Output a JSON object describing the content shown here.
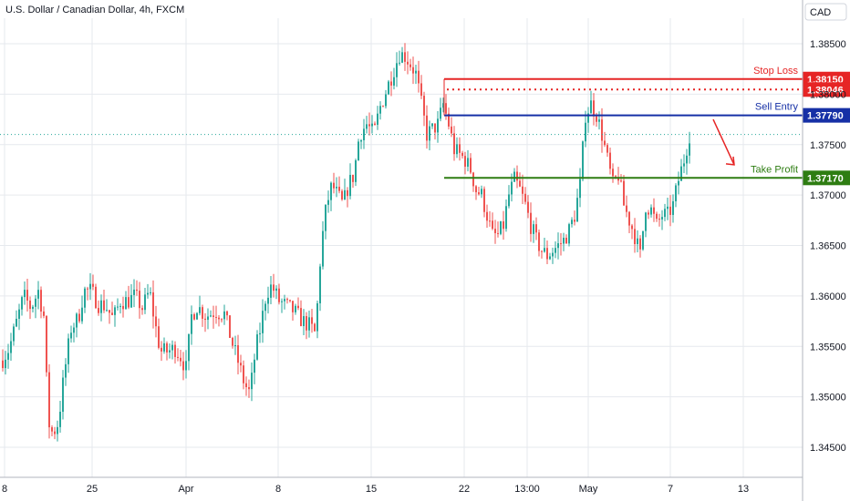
{
  "header": {
    "symbol_title": "U.S. Dollar / Canadian Dollar, 4h, FXCM",
    "currency": "CAD"
  },
  "colors": {
    "up": "#26a69a",
    "down": "#ef5350",
    "stop": "#e62525",
    "entry": "#1630a6",
    "profit": "#2e7d12",
    "grid": "#e6e9ee",
    "axis": "#b2b5be",
    "current": "#26a69a"
  },
  "chart_data": {
    "type": "candlestick",
    "ylim": [
      1.3425,
      1.387
    ],
    "yticks": [
      "1.38500",
      "1.38000",
      "1.37500",
      "1.37000",
      "1.36500",
      "1.36000",
      "1.35500",
      "1.35000",
      "1.34500"
    ],
    "xticks": [
      "8",
      "25",
      "Apr",
      "8",
      "15",
      "22",
      "13:00",
      "May",
      "7",
      "13"
    ],
    "current_price": 1.376,
    "levels": [
      {
        "name": "Stop Loss",
        "value": "1.38150",
        "price": 1.3815,
        "style": "solid",
        "color": "#e62525"
      },
      {
        "name": "",
        "value": "1.38046",
        "price": 1.38046,
        "style": "dotted",
        "color": "#e62525"
      },
      {
        "name": "Sell Entry",
        "value": "1.37790",
        "price": 1.3779,
        "style": "solid",
        "color": "#1630a6"
      },
      {
        "name": "Take Profit",
        "value": "1.37170",
        "price": 1.3717,
        "style": "solid",
        "color": "#2e7d12"
      }
    ],
    "close_path": [
      [
        0,
        1.3533
      ],
      [
        10,
        1.3548
      ],
      [
        20,
        1.358
      ],
      [
        26,
        1.36
      ],
      [
        34,
        1.3588
      ],
      [
        42,
        1.3605
      ],
      [
        48,
        1.358
      ],
      [
        53,
        1.3475
      ],
      [
        58,
        1.3463
      ],
      [
        64,
        1.3475
      ],
      [
        70,
        1.352
      ],
      [
        78,
        1.3568
      ],
      [
        86,
        1.3578
      ],
      [
        92,
        1.3605
      ],
      [
        100,
        1.3605
      ],
      [
        108,
        1.3592
      ],
      [
        116,
        1.359
      ],
      [
        124,
        1.3577
      ],
      [
        132,
        1.3595
      ],
      [
        140,
        1.3595
      ],
      [
        148,
        1.36
      ],
      [
        156,
        1.3588
      ],
      [
        164,
        1.3605
      ],
      [
        170,
        1.3572
      ],
      [
        176,
        1.3545
      ],
      [
        184,
        1.3545
      ],
      [
        192,
        1.3548
      ],
      [
        198,
        1.354
      ],
      [
        204,
        1.3528
      ],
      [
        210,
        1.358
      ],
      [
        216,
        1.359
      ],
      [
        226,
        1.358
      ],
      [
        236,
        1.3585
      ],
      [
        246,
        1.3582
      ],
      [
        254,
        1.3555
      ],
      [
        262,
        1.3532
      ],
      [
        268,
        1.3513
      ],
      [
        274,
        1.3503
      ],
      [
        280,
        1.3545
      ],
      [
        286,
        1.357
      ],
      [
        292,
        1.3603
      ],
      [
        298,
        1.361
      ],
      [
        306,
        1.3595
      ],
      [
        314,
        1.359
      ],
      [
        322,
        1.3585
      ],
      [
        332,
        1.3575
      ],
      [
        340,
        1.357
      ],
      [
        346,
        1.3562
      ],
      [
        352,
        1.3648
      ],
      [
        358,
        1.369
      ],
      [
        364,
        1.371
      ],
      [
        370,
        1.37
      ],
      [
        376,
        1.369
      ],
      [
        382,
        1.371
      ],
      [
        388,
        1.372
      ],
      [
        394,
        1.376
      ],
      [
        402,
        1.377
      ],
      [
        410,
        1.376
      ],
      [
        416,
        1.3785
      ],
      [
        422,
        1.38
      ],
      [
        430,
        1.382
      ],
      [
        438,
        1.384
      ],
      [
        444,
        1.3838
      ],
      [
        450,
        1.383
      ],
      [
        456,
        1.382
      ],
      [
        462,
        1.379
      ],
      [
        468,
        1.376
      ],
      [
        474,
        1.3765
      ],
      [
        480,
        1.377
      ],
      [
        486,
        1.379
      ],
      [
        492,
        1.377
      ],
      [
        498,
        1.3745
      ],
      [
        504,
        1.374
      ],
      [
        510,
        1.3735
      ],
      [
        516,
        1.3725
      ],
      [
        522,
        1.3705
      ],
      [
        528,
        1.37
      ],
      [
        534,
        1.368
      ],
      [
        540,
        1.366
      ],
      [
        546,
        1.366
      ],
      [
        552,
        1.367
      ],
      [
        558,
        1.37
      ],
      [
        564,
        1.3715
      ],
      [
        570,
        1.3705
      ],
      [
        576,
        1.369
      ],
      [
        582,
        1.367
      ],
      [
        588,
        1.3655
      ],
      [
        594,
        1.3645
      ],
      [
        600,
        1.364
      ],
      [
        606,
        1.3645
      ],
      [
        612,
        1.365
      ],
      [
        618,
        1.3655
      ],
      [
        624,
        1.3665
      ],
      [
        630,
        1.368
      ],
      [
        636,
        1.371
      ],
      [
        642,
        1.378
      ],
      [
        648,
        1.379
      ],
      [
        654,
        1.378
      ],
      [
        660,
        1.376
      ],
      [
        666,
        1.3735
      ],
      [
        672,
        1.371
      ],
      [
        678,
        1.372
      ],
      [
        684,
        1.369
      ],
      [
        690,
        1.3675
      ],
      [
        696,
        1.366
      ],
      [
        702,
        1.364
      ],
      [
        708,
        1.369
      ],
      [
        714,
        1.3685
      ],
      [
        720,
        1.367
      ],
      [
        726,
        1.368
      ],
      [
        732,
        1.368
      ],
      [
        738,
        1.369
      ],
      [
        744,
        1.3715
      ],
      [
        750,
        1.3735
      ],
      [
        756,
        1.376
      ]
    ],
    "forecast_arrow": {
      "from": [
        782,
        1.3775
      ],
      "to": [
        805,
        1.373
      ]
    }
  }
}
